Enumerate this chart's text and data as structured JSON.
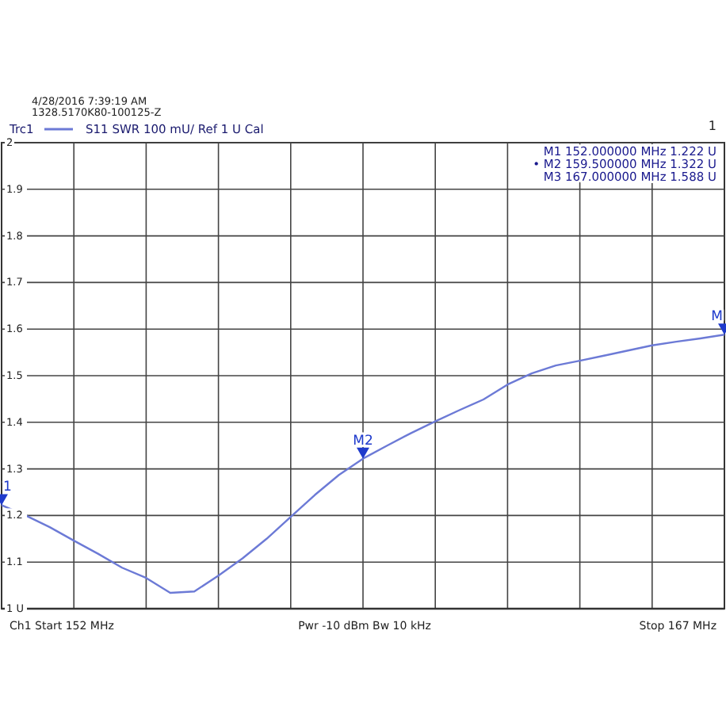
{
  "chart_data": {
    "type": "line",
    "subtitle": "S11  SWR  100 mU/  Ref 1 U  Cal",
    "legend": "top left",
    "annotations": [
      "4/28/2016 7:39:19 AM",
      "1328.5170K80-100125-Z",
      "1",
      "M1  152.000000  MHz  1.222  U",
      "• M2  159.500000  MHz  1.322  U",
      "M3  167.000000  MHz  1.588  U",
      "Ch1  Start  152 MHz",
      "Pwr  -10 dBm  Bw  10 kHz",
      "Stop  167 MHz",
      {
        "text": "1",
        "y": 1.222
      },
      {
        "text": "M2",
        "y": 1.322
      },
      {
        "text": "M",
        "y": 1.588
      }
    ],
    "categories": [
      null,
      null,
      null,
      null,
      null,
      null,
      null,
      null,
      null,
      null,
      null,
      null,
      null,
      null,
      null,
      null,
      null,
      null,
      null,
      null,
      null,
      null,
      null,
      null,
      null,
      null,
      null,
      null,
      null,
      null,
      null
    ],
    "ylim": [
      1,
      2
    ],
    "yticks": [
      {
        "value": 1,
        "label": "1 U"
      },
      1.1,
      1.2,
      1.3,
      1.4,
      1.5,
      1.6,
      1.7,
      1.8,
      1.9,
      2
    ],
    "tick_labels": "y",
    "grid": true,
    "marker": "none",
    "line_style": "solid",
    "series": [
      {
        "name": "Trc1",
        "color": "#6c7ad6",
        "values": [
          1.222,
          1.2,
          1.175,
          1.146,
          1.118,
          1.088,
          1.066,
          1.034,
          1.037,
          1.071,
          1.108,
          1.15,
          1.197,
          1.244,
          1.287,
          1.322,
          1.35,
          1.377,
          1.402,
          1.426,
          1.449,
          1.481,
          1.505,
          1.522,
          1.532,
          1.543,
          1.554,
          1.565,
          1.573,
          1.58,
          1.588
        ]
      }
    ]
  }
}
